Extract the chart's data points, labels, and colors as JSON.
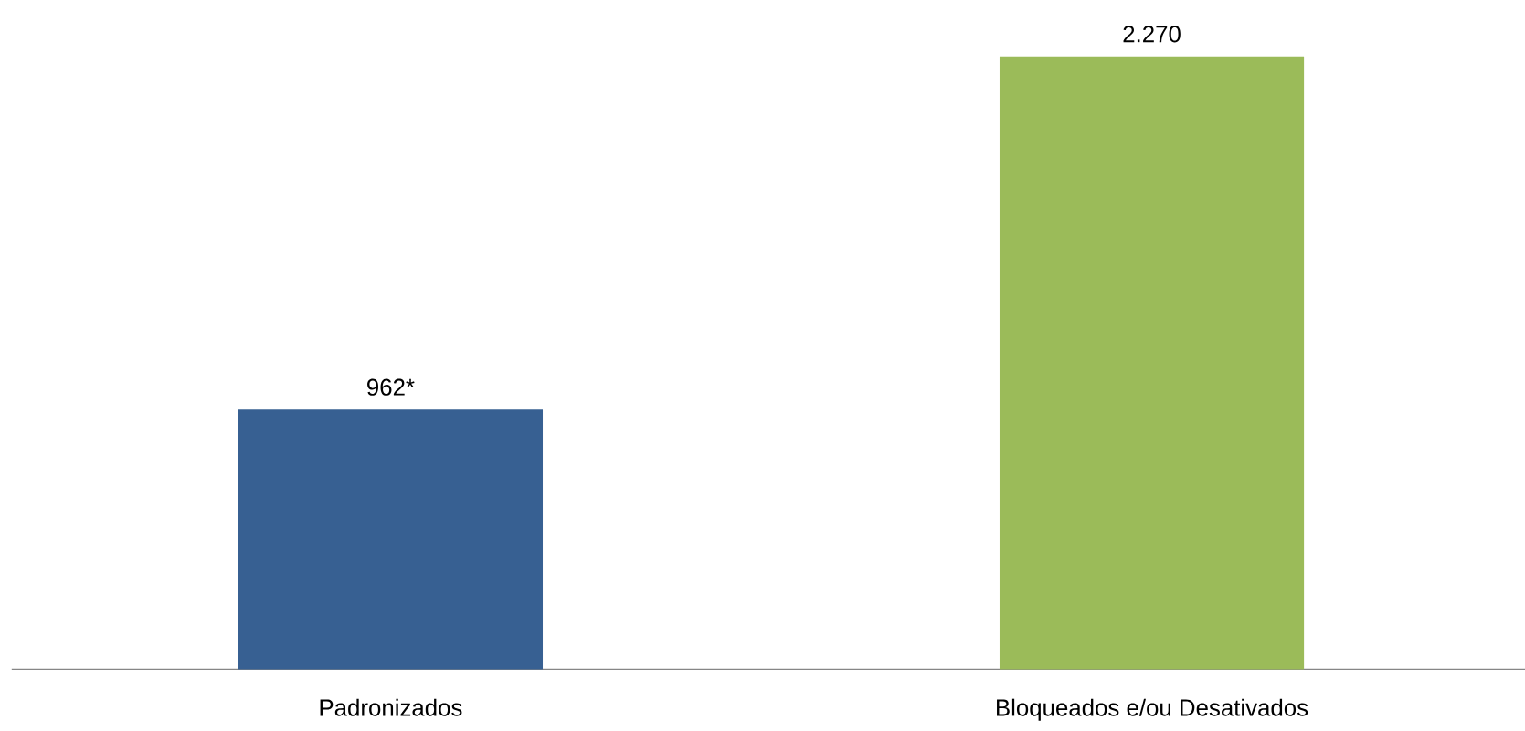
{
  "chart_data": {
    "type": "bar",
    "categories": [
      "Padronizados",
      "Bloqueados e/ou Desativados"
    ],
    "values": [
      962,
      2270
    ],
    "colors": [
      "#376092",
      "#9bbb59"
    ],
    "value_labels": [
      "962*",
      "2.270"
    ]
  }
}
